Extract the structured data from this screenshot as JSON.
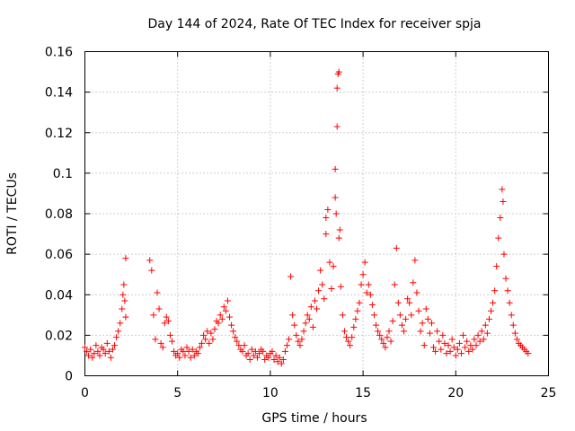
{
  "chart_data": {
    "type": "scatter",
    "title": "Day 144 of 2024, Rate Of TEC Index for receiver spja",
    "xlabel": "GPS time / hours",
    "ylabel": "ROTI / TECUs",
    "xlim": [
      0,
      25
    ],
    "ylim": [
      0,
      0.16
    ],
    "xticks": [
      0,
      5,
      10,
      15,
      20,
      25
    ],
    "xtick_labels": [
      "0",
      "5",
      "10",
      "15",
      "20",
      "25"
    ],
    "yticks": [
      0,
      0.02,
      0.04,
      0.06,
      0.08,
      0.1,
      0.12,
      0.14,
      0.16
    ],
    "ytick_labels": [
      "0",
      "0.02",
      "0.04",
      "0.06",
      "0.08",
      "0.1",
      "0.12",
      "0.14",
      "0.16"
    ],
    "grid": true,
    "marker": "+",
    "color": "#ff0000",
    "series": [
      {
        "name": "ROTI",
        "points": [
          [
            0.0,
            0.014
          ],
          [
            0.1,
            0.012
          ],
          [
            0.2,
            0.01
          ],
          [
            0.3,
            0.013
          ],
          [
            0.4,
            0.009
          ],
          [
            0.5,
            0.011
          ],
          [
            0.6,
            0.015
          ],
          [
            0.7,
            0.012
          ],
          [
            0.8,
            0.01
          ],
          [
            0.9,
            0.014
          ],
          [
            1.0,
            0.013
          ],
          [
            1.1,
            0.011
          ],
          [
            1.2,
            0.016
          ],
          [
            1.3,
            0.012
          ],
          [
            1.4,
            0.009
          ],
          [
            1.5,
            0.013
          ],
          [
            1.6,
            0.015
          ],
          [
            1.7,
            0.019
          ],
          [
            1.8,
            0.022
          ],
          [
            1.9,
            0.026
          ],
          [
            2.0,
            0.033
          ],
          [
            2.05,
            0.04
          ],
          [
            2.1,
            0.045
          ],
          [
            2.15,
            0.037
          ],
          [
            2.2,
            0.029
          ],
          [
            2.2,
            0.058
          ],
          [
            3.5,
            0.057
          ],
          [
            3.6,
            0.052
          ],
          [
            3.7,
            0.03
          ],
          [
            3.8,
            0.018
          ],
          [
            3.9,
            0.041
          ],
          [
            4.0,
            0.033
          ],
          [
            4.1,
            0.016
          ],
          [
            4.2,
            0.014
          ],
          [
            4.3,
            0.026
          ],
          [
            4.4,
            0.029
          ],
          [
            4.5,
            0.027
          ],
          [
            4.6,
            0.02
          ],
          [
            4.7,
            0.017
          ],
          [
            4.8,
            0.012
          ],
          [
            4.9,
            0.01
          ],
          [
            5.0,
            0.011
          ],
          [
            5.1,
            0.009
          ],
          [
            5.2,
            0.013
          ],
          [
            5.3,
            0.012
          ],
          [
            5.4,
            0.01
          ],
          [
            5.5,
            0.014
          ],
          [
            5.6,
            0.012
          ],
          [
            5.7,
            0.009
          ],
          [
            5.8,
            0.013
          ],
          [
            5.9,
            0.01
          ],
          [
            6.0,
            0.012
          ],
          [
            6.1,
            0.011
          ],
          [
            6.2,
            0.014
          ],
          [
            6.3,
            0.016
          ],
          [
            6.4,
            0.02
          ],
          [
            6.5,
            0.018
          ],
          [
            6.6,
            0.022
          ],
          [
            6.7,
            0.016
          ],
          [
            6.8,
            0.021
          ],
          [
            6.9,
            0.018
          ],
          [
            7.0,
            0.023
          ],
          [
            7.1,
            0.027
          ],
          [
            7.2,
            0.026
          ],
          [
            7.3,
            0.03
          ],
          [
            7.4,
            0.028
          ],
          [
            7.5,
            0.034
          ],
          [
            7.6,
            0.032
          ],
          [
            7.7,
            0.037
          ],
          [
            7.8,
            0.029
          ],
          [
            7.9,
            0.025
          ],
          [
            8.0,
            0.022
          ],
          [
            8.1,
            0.019
          ],
          [
            8.2,
            0.017
          ],
          [
            8.3,
            0.015
          ],
          [
            8.4,
            0.013
          ],
          [
            8.5,
            0.012
          ],
          [
            8.6,
            0.015
          ],
          [
            8.7,
            0.01
          ],
          [
            8.8,
            0.011
          ],
          [
            8.9,
            0.008
          ],
          [
            9.0,
            0.013
          ],
          [
            9.1,
            0.01
          ],
          [
            9.2,
            0.012
          ],
          [
            9.3,
            0.009
          ],
          [
            9.4,
            0.011
          ],
          [
            9.5,
            0.013
          ],
          [
            9.6,
            0.012
          ],
          [
            9.7,
            0.008
          ],
          [
            9.8,
            0.01
          ],
          [
            9.9,
            0.009
          ],
          [
            10.0,
            0.011
          ],
          [
            10.1,
            0.012
          ],
          [
            10.2,
            0.008
          ],
          [
            10.3,
            0.01
          ],
          [
            10.4,
            0.007
          ],
          [
            10.5,
            0.009
          ],
          [
            10.6,
            0.006
          ],
          [
            10.7,
            0.008
          ],
          [
            10.8,
            0.012
          ],
          [
            10.9,
            0.015
          ],
          [
            11.0,
            0.018
          ],
          [
            11.1,
            0.049
          ],
          [
            11.2,
            0.03
          ],
          [
            11.3,
            0.025
          ],
          [
            11.4,
            0.02
          ],
          [
            11.5,
            0.017
          ],
          [
            11.6,
            0.015
          ],
          [
            11.7,
            0.018
          ],
          [
            11.8,
            0.022
          ],
          [
            11.9,
            0.026
          ],
          [
            12.0,
            0.03
          ],
          [
            12.1,
            0.028
          ],
          [
            12.2,
            0.034
          ],
          [
            12.3,
            0.024
          ],
          [
            12.4,
            0.037
          ],
          [
            12.5,
            0.033
          ],
          [
            12.6,
            0.042
          ],
          [
            12.7,
            0.052
          ],
          [
            12.8,
            0.045
          ],
          [
            12.9,
            0.038
          ],
          [
            13.0,
            0.07
          ],
          [
            13.0,
            0.078
          ],
          [
            13.1,
            0.082
          ],
          [
            13.2,
            0.056
          ],
          [
            13.3,
            0.043
          ],
          [
            13.4,
            0.054
          ],
          [
            13.5,
            0.088
          ],
          [
            13.5,
            0.102
          ],
          [
            13.55,
            0.08
          ],
          [
            13.6,
            0.123
          ],
          [
            13.6,
            0.142
          ],
          [
            13.65,
            0.149
          ],
          [
            13.7,
            0.15
          ],
          [
            13.7,
            0.068
          ],
          [
            13.75,
            0.072
          ],
          [
            13.8,
            0.044
          ],
          [
            13.9,
            0.03
          ],
          [
            14.0,
            0.022
          ],
          [
            14.1,
            0.019
          ],
          [
            14.2,
            0.017
          ],
          [
            14.3,
            0.015
          ],
          [
            14.4,
            0.019
          ],
          [
            14.5,
            0.024
          ],
          [
            14.6,
            0.028
          ],
          [
            14.7,
            0.032
          ],
          [
            14.8,
            0.036
          ],
          [
            14.9,
            0.045
          ],
          [
            15.0,
            0.05
          ],
          [
            15.1,
            0.056
          ],
          [
            15.2,
            0.041
          ],
          [
            15.3,
            0.045
          ],
          [
            15.4,
            0.04
          ],
          [
            15.5,
            0.035
          ],
          [
            15.6,
            0.03
          ],
          [
            15.7,
            0.025
          ],
          [
            15.8,
            0.022
          ],
          [
            15.9,
            0.02
          ],
          [
            16.0,
            0.018
          ],
          [
            16.1,
            0.016
          ],
          [
            16.2,
            0.014
          ],
          [
            16.3,
            0.019
          ],
          [
            16.4,
            0.022
          ],
          [
            16.5,
            0.017
          ],
          [
            16.6,
            0.027
          ],
          [
            16.7,
            0.045
          ],
          [
            16.8,
            0.063
          ],
          [
            16.9,
            0.036
          ],
          [
            17.0,
            0.03
          ],
          [
            17.1,
            0.025
          ],
          [
            17.2,
            0.022
          ],
          [
            17.3,
            0.028
          ],
          [
            17.4,
            0.038
          ],
          [
            17.5,
            0.036
          ],
          [
            17.6,
            0.03
          ],
          [
            17.7,
            0.046
          ],
          [
            17.8,
            0.057
          ],
          [
            17.9,
            0.041
          ],
          [
            18.0,
            0.032
          ],
          [
            18.1,
            0.022
          ],
          [
            18.2,
            0.026
          ],
          [
            18.3,
            0.015
          ],
          [
            18.4,
            0.033
          ],
          [
            18.5,
            0.028
          ],
          [
            18.6,
            0.021
          ],
          [
            18.7,
            0.026
          ],
          [
            18.8,
            0.014
          ],
          [
            18.9,
            0.012
          ],
          [
            19.0,
            0.022
          ],
          [
            19.1,
            0.017
          ],
          [
            19.2,
            0.013
          ],
          [
            19.3,
            0.02
          ],
          [
            19.4,
            0.016
          ],
          [
            19.5,
            0.011
          ],
          [
            19.6,
            0.015
          ],
          [
            19.7,
            0.012
          ],
          [
            19.8,
            0.018
          ],
          [
            19.9,
            0.014
          ],
          [
            20.0,
            0.01
          ],
          [
            20.1,
            0.013
          ],
          [
            20.2,
            0.016
          ],
          [
            20.3,
            0.011
          ],
          [
            20.4,
            0.02
          ],
          [
            20.5,
            0.014
          ],
          [
            20.6,
            0.017
          ],
          [
            20.7,
            0.012
          ],
          [
            20.8,
            0.015
          ],
          [
            20.9,
            0.013
          ],
          [
            21.0,
            0.018
          ],
          [
            21.1,
            0.015
          ],
          [
            21.2,
            0.02
          ],
          [
            21.3,
            0.017
          ],
          [
            21.4,
            0.022
          ],
          [
            21.5,
            0.018
          ],
          [
            21.6,
            0.025
          ],
          [
            21.7,
            0.021
          ],
          [
            21.8,
            0.028
          ],
          [
            21.9,
            0.032
          ],
          [
            22.0,
            0.036
          ],
          [
            22.1,
            0.042
          ],
          [
            22.2,
            0.054
          ],
          [
            22.3,
            0.068
          ],
          [
            22.4,
            0.078
          ],
          [
            22.5,
            0.092
          ],
          [
            22.55,
            0.086
          ],
          [
            22.6,
            0.06
          ],
          [
            22.7,
            0.048
          ],
          [
            22.8,
            0.042
          ],
          [
            22.9,
            0.036
          ],
          [
            23.0,
            0.03
          ],
          [
            23.1,
            0.025
          ],
          [
            23.2,
            0.021
          ],
          [
            23.3,
            0.018
          ],
          [
            23.4,
            0.016
          ],
          [
            23.5,
            0.015
          ],
          [
            23.6,
            0.014
          ],
          [
            23.7,
            0.013
          ],
          [
            23.8,
            0.012
          ],
          [
            23.9,
            0.011
          ]
        ]
      }
    ]
  }
}
